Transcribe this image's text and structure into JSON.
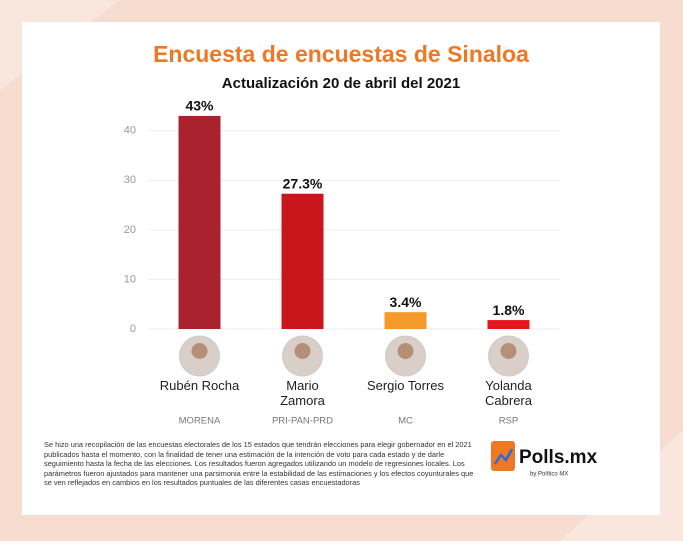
{
  "chart_data": {
    "type": "bar",
    "title": "Encuesta de encuestas de Sinaloa",
    "subtitle": "Actualización 20 de abril del 2021",
    "categories": [
      "Rubén Rocha",
      "Mario Zamora",
      "Sergio Torres",
      "Yolanda Cabrera"
    ],
    "parties": [
      "MORENA",
      "PRI-PAN-PRD",
      "MC",
      "RSP"
    ],
    "values": [
      43,
      27.3,
      3.4,
      1.8
    ],
    "value_labels": [
      "43%",
      "27.3%",
      "3.4%",
      "1.8%"
    ],
    "colors": [
      "#a8232e",
      "#c9161d",
      "#f39a2a",
      "#e3161f"
    ],
    "ylim": [
      0,
      45
    ],
    "yticks": [
      0,
      10,
      20,
      30,
      40
    ],
    "grid": true,
    "footnote": "Se hizo una recopilación de las encuestas electorales de los 15 estados que tendrán elecciones para elegir gobernador en el 2021 publicados hasta el momento, con la finalidad de tener una estimación de la intención de voto para cada estado y de darle seguimiento hasta la fecha de las elecciones. Los resultados fueron agregados utilizando un modelo de regresiones locales. Los parámetros fueron ajustados para mantener una parsimonia entre la estabilidad de las estimaciones y los efectos coyunturales que se ven reflejados en cambios en los resultados puntuales de las diferentes casas encuestadoras",
    "logo": "Polls.mx",
    "logo_byline": "by Político MX"
  }
}
